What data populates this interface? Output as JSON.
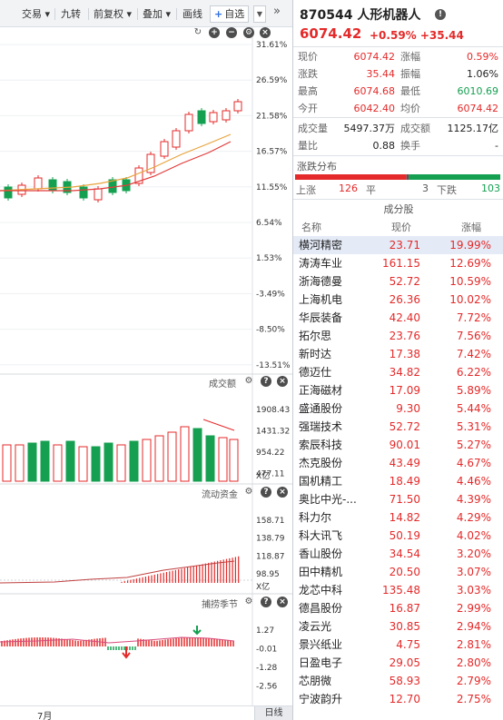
{
  "toolbar": {
    "items": [
      "交易",
      "九转",
      "前复权",
      "叠加",
      "画线"
    ],
    "zixuan_label": "自选",
    "more_label": "»"
  },
  "price_axis": [
    "31.61%",
    "26.59%",
    "21.58%",
    "16.57%",
    "11.55%",
    "6.54%",
    "1.53%",
    "-3.49%",
    "-8.50%",
    "-13.51%"
  ],
  "volume_pane": {
    "title": "成交额",
    "axis": [
      "1908.43",
      "1431.32",
      "954.22",
      "477.11"
    ],
    "unit": "X亿"
  },
  "flow_pane": {
    "title": "流动资金",
    "axis": [
      "158.71",
      "138.79",
      "118.87",
      "98.95"
    ],
    "unit": "X亿"
  },
  "season_pane": {
    "title": "捕捞季节",
    "axis": [
      "1.27",
      "-0.01",
      "-1.28",
      "-2.56"
    ]
  },
  "bottom_bar": {
    "month": "7月",
    "period_button": "日线"
  },
  "quote": {
    "title": "870544 人形机器人",
    "price": "6074.42",
    "change": "+0.59%  +35.44",
    "stats": [
      [
        {
          "k": "现价",
          "v": "6074.42",
          "c": "red"
        },
        {
          "k": "涨幅",
          "v": "0.59%",
          "c": "red"
        }
      ],
      [
        {
          "k": "涨跌",
          "v": "35.44",
          "c": "red"
        },
        {
          "k": "振幅",
          "v": "1.06%",
          "c": "dark"
        }
      ],
      [
        {
          "k": "最高",
          "v": "6074.68",
          "c": "red"
        },
        {
          "k": "最低",
          "v": "6010.69",
          "c": "green"
        }
      ],
      [
        {
          "k": "今开",
          "v": "6042.40",
          "c": "red"
        },
        {
          "k": "均价",
          "v": "6074.42",
          "c": "red"
        }
      ],
      [
        {
          "k": "成交量",
          "v": "5497.37万",
          "c": "dark"
        },
        {
          "k": "成交额",
          "v": "1125.17亿",
          "c": "dark"
        }
      ],
      [
        {
          "k": "量比",
          "v": "0.88",
          "c": "dark"
        },
        {
          "k": "换手",
          "v": "-",
          "c": "dark"
        }
      ]
    ],
    "distribution": {
      "title": "涨跌分布",
      "up_label": "上涨",
      "up": "126",
      "flat_label": "平",
      "flat": "3",
      "down_label": "下跌",
      "down": "103",
      "colors": {
        "up": "#e42a2a",
        "flat": "#555555",
        "down": "#14a050"
      }
    },
    "constituents_title": "成分股",
    "list_headers": {
      "name": "名称",
      "price": "现价",
      "change": "涨幅"
    },
    "constituents": [
      {
        "name": "横河精密",
        "price": "23.71",
        "change": "19.99%"
      },
      {
        "name": "涛涛车业",
        "price": "161.15",
        "change": "12.69%"
      },
      {
        "name": "浙海德曼",
        "price": "52.72",
        "change": "10.59%"
      },
      {
        "name": "上海机电",
        "price": "26.36",
        "change": "10.02%"
      },
      {
        "name": "华辰装备",
        "price": "42.40",
        "change": "7.72%"
      },
      {
        "name": "拓尔思",
        "price": "23.76",
        "change": "7.56%"
      },
      {
        "name": "新时达",
        "price": "17.38",
        "change": "7.42%"
      },
      {
        "name": "德迈仕",
        "price": "34.82",
        "change": "6.22%"
      },
      {
        "name": "正海磁材",
        "price": "17.09",
        "change": "5.89%"
      },
      {
        "name": "盛通股份",
        "price": "9.30",
        "change": "5.44%"
      },
      {
        "name": "强瑞技术",
        "price": "52.72",
        "change": "5.31%"
      },
      {
        "name": "索辰科技",
        "price": "90.01",
        "change": "5.27%"
      },
      {
        "name": "杰克股份",
        "price": "43.49",
        "change": "4.67%"
      },
      {
        "name": "国机精工",
        "price": "18.49",
        "change": "4.46%"
      },
      {
        "name": "奥比中光-...",
        "price": "71.50",
        "change": "4.39%"
      },
      {
        "name": "科力尔",
        "price": "14.82",
        "change": "4.29%"
      },
      {
        "name": "科大讯飞",
        "price": "50.19",
        "change": "4.02%"
      },
      {
        "name": "香山股份",
        "price": "34.54",
        "change": "3.20%"
      },
      {
        "name": "田中精机",
        "price": "20.50",
        "change": "3.07%"
      },
      {
        "name": "龙芯中科",
        "price": "135.48",
        "change": "3.03%"
      },
      {
        "name": "德昌股份",
        "price": "16.87",
        "change": "2.99%"
      },
      {
        "name": "凌云光",
        "price": "30.85",
        "change": "2.94%"
      },
      {
        "name": "景兴纸业",
        "price": "4.75",
        "change": "2.81%"
      },
      {
        "name": "日盈电子",
        "price": "29.05",
        "change": "2.80%"
      },
      {
        "name": "芯朋微",
        "price": "58.93",
        "change": "2.79%"
      },
      {
        "name": "宁波韵升",
        "price": "12.70",
        "change": "2.75%"
      }
    ]
  },
  "colors": {
    "up": "#e42a2a",
    "down": "#14a050",
    "ma1": "#e8a33c",
    "ma2": "#e23b3b",
    "selected_row": "#e4ebf7"
  }
}
